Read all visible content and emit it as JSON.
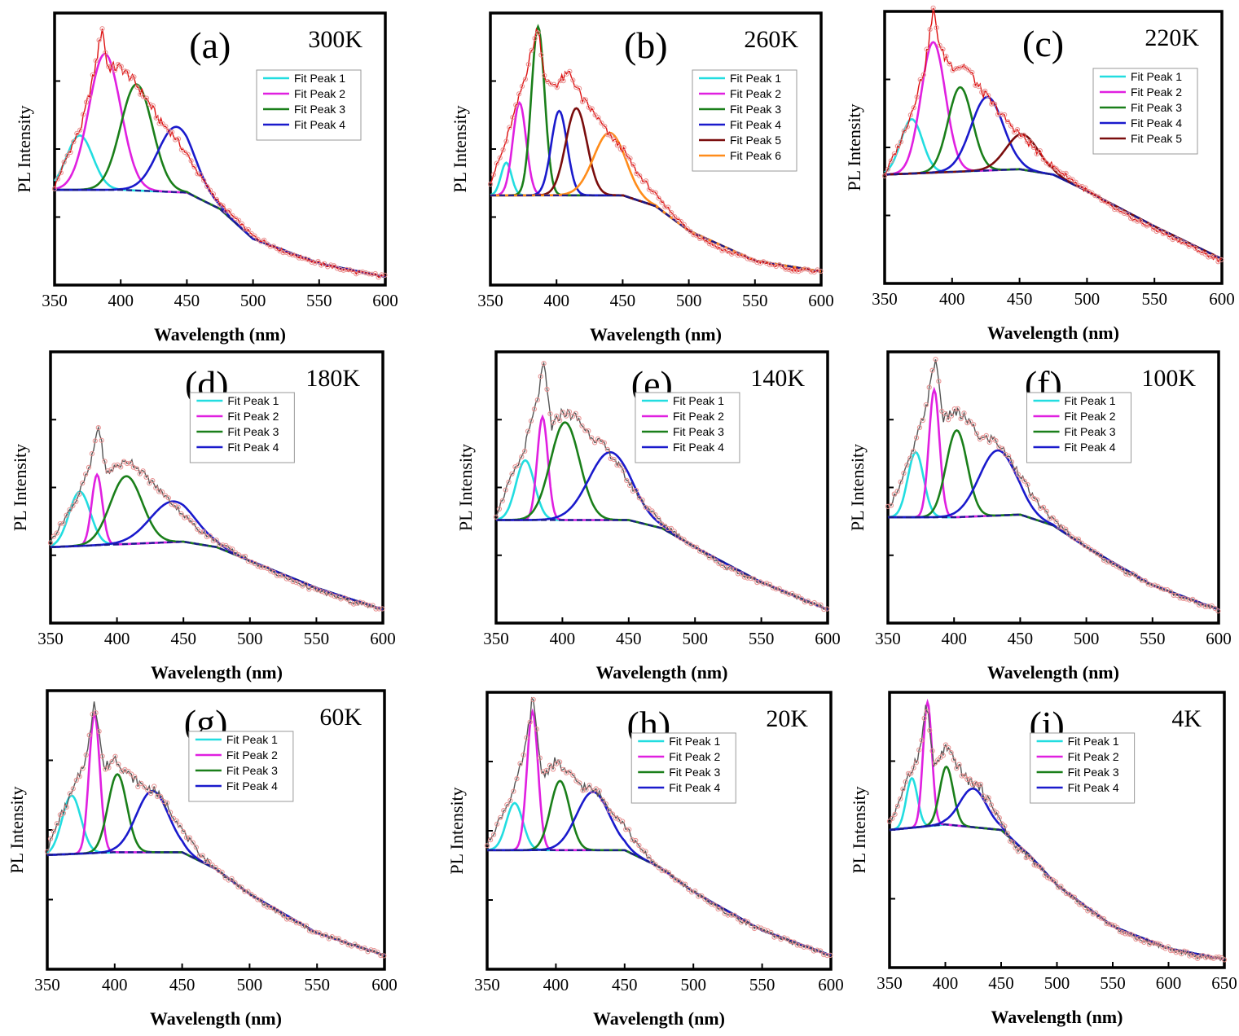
{
  "chart_data": [
    {
      "type": "line",
      "panel": "(a)",
      "temperature": "300K",
      "xlabel": "Wavelength (nm)",
      "ylabel": "PL Intensity",
      "xlim": [
        350,
        600
      ],
      "xticks": [
        350,
        400,
        450,
        500,
        550,
        600
      ],
      "ylim": [
        0,
        1
      ],
      "baseline": {
        "wavelength": [
          350,
          400,
          450,
          475,
          500,
          550,
          600
        ],
        "intensity": [
          0.35,
          0.35,
          0.34,
          0.28,
          0.17,
          0.08,
          0.03
        ]
      },
      "measured": {
        "wavelength": [
          350,
          360,
          370,
          380,
          386,
          390,
          400,
          410,
          420,
          430,
          440,
          450,
          460,
          475,
          500,
          525,
          550,
          575,
          600
        ],
        "intensity": [
          0.36,
          0.48,
          0.58,
          0.78,
          0.95,
          0.8,
          0.8,
          0.75,
          0.68,
          0.6,
          0.55,
          0.48,
          0.4,
          0.3,
          0.18,
          0.12,
          0.08,
          0.05,
          0.03
        ]
      },
      "peaks": [
        {
          "name": "Fit Peak 1",
          "color": "#22dde0",
          "center": 369,
          "height": 0.2,
          "width": 10
        },
        {
          "name": "Fit Peak 2",
          "color": "#e020e0",
          "center": 388,
          "height": 0.5,
          "width": 12
        },
        {
          "name": "Fit Peak 3",
          "color": "#1a7f1a",
          "center": 412,
          "height": 0.39,
          "width": 12
        },
        {
          "name": "Fit Peak 4",
          "color": "#1a1acc",
          "center": 442,
          "height": 0.24,
          "width": 14
        }
      ]
    },
    {
      "type": "line",
      "panel": "(b)",
      "temperature": "260K",
      "xlabel": "Wavelength (nm)",
      "ylabel": "PL Intensity",
      "xlim": [
        350,
        600
      ],
      "xticks": [
        350,
        400,
        450,
        500,
        550,
        600
      ],
      "ylim": [
        0,
        1
      ],
      "baseline": {
        "wavelength": [
          350,
          400,
          450,
          475,
          500,
          550,
          600
        ],
        "intensity": [
          0.33,
          0.33,
          0.33,
          0.29,
          0.2,
          0.09,
          0.05
        ]
      },
      "measured": {
        "wavelength": [
          350,
          360,
          370,
          378,
          386,
          392,
          400,
          410,
          420,
          430,
          440,
          450,
          460,
          475,
          500,
          525,
          550,
          575,
          600
        ],
        "intensity": [
          0.38,
          0.5,
          0.66,
          0.8,
          0.95,
          0.74,
          0.74,
          0.78,
          0.68,
          0.62,
          0.55,
          0.5,
          0.42,
          0.33,
          0.2,
          0.13,
          0.09,
          0.06,
          0.05
        ]
      },
      "peaks": [
        {
          "name": "Fit Peak 1",
          "color": "#22dde0",
          "center": 362,
          "height": 0.12,
          "width": 4
        },
        {
          "name": "Fit Peak 2",
          "color": "#e020e0",
          "center": 372,
          "height": 0.34,
          "width": 5
        },
        {
          "name": "Fit Peak 3",
          "color": "#1a7f1a",
          "center": 386,
          "height": 0.62,
          "width": 5
        },
        {
          "name": "Fit Peak 4",
          "color": "#1a1acc",
          "center": 402,
          "height": 0.31,
          "width": 6
        },
        {
          "name": "Fit Peak 5",
          "color": "#7a0d0d",
          "center": 415,
          "height": 0.32,
          "width": 8
        },
        {
          "name": "Fit Peak 6",
          "color": "#ff8c1a",
          "center": 440,
          "height": 0.23,
          "width": 12
        }
      ]
    },
    {
      "type": "line",
      "panel": "(c)",
      "temperature": "220K",
      "xlabel": "Wavelength (nm)",
      "ylabel": "PL Intensity",
      "xlim": [
        350,
        600
      ],
      "xticks": [
        350,
        400,
        450,
        500,
        550,
        600
      ],
      "ylim": [
        0,
        1
      ],
      "baseline": {
        "wavelength": [
          350,
          400,
          450,
          475,
          500,
          550,
          600
        ],
        "intensity": [
          0.4,
          0.41,
          0.42,
          0.4,
          0.34,
          0.21,
          0.09
        ]
      },
      "measured": {
        "wavelength": [
          350,
          360,
          370,
          380,
          386,
          392,
          400,
          410,
          420,
          430,
          440,
          450,
          460,
          475,
          500,
          525,
          550,
          575,
          600
        ],
        "intensity": [
          0.4,
          0.5,
          0.63,
          0.8,
          1.0,
          0.85,
          0.8,
          0.8,
          0.72,
          0.66,
          0.6,
          0.55,
          0.5,
          0.43,
          0.34,
          0.26,
          0.2,
          0.14,
          0.08
        ]
      },
      "peaks": [
        {
          "name": "Fit Peak 1",
          "color": "#22dde0",
          "center": 370,
          "height": 0.2,
          "width": 8
        },
        {
          "name": "Fit Peak 2",
          "color": "#e020e0",
          "center": 386,
          "height": 0.48,
          "width": 9
        },
        {
          "name": "Fit Peak 3",
          "color": "#1a7f1a",
          "center": 406,
          "height": 0.31,
          "width": 9
        },
        {
          "name": "Fit Peak 4",
          "color": "#1a1acc",
          "center": 426,
          "height": 0.27,
          "width": 12
        },
        {
          "name": "Fit Peak 5",
          "color": "#7a0d0d",
          "center": 452,
          "height": 0.13,
          "width": 12
        }
      ]
    },
    {
      "type": "line",
      "panel": "(d)",
      "temperature": "180K",
      "xlabel": "Wavelength (nm)",
      "ylabel": "PL Intensity",
      "xlim": [
        350,
        600
      ],
      "xticks": [
        350,
        400,
        450,
        500,
        550,
        600
      ],
      "ylim": [
        0,
        1
      ],
      "baseline": {
        "wavelength": [
          350,
          400,
          450,
          475,
          500,
          550,
          600
        ],
        "intensity": [
          0.28,
          0.29,
          0.3,
          0.28,
          0.23,
          0.13,
          0.05
        ]
      },
      "measured": {
        "wavelength": [
          350,
          360,
          370,
          380,
          386,
          392,
          400,
          410,
          420,
          430,
          440,
          450,
          460,
          475,
          500,
          525,
          550,
          575,
          600
        ],
        "intensity": [
          0.3,
          0.38,
          0.46,
          0.58,
          0.73,
          0.55,
          0.58,
          0.6,
          0.55,
          0.5,
          0.45,
          0.4,
          0.35,
          0.3,
          0.23,
          0.17,
          0.12,
          0.08,
          0.05
        ]
      },
      "peaks": [
        {
          "name": "Fit Peak 1",
          "color": "#22dde0",
          "center": 372,
          "height": 0.2,
          "width": 8
        },
        {
          "name": "Fit Peak 2",
          "color": "#e020e0",
          "center": 385,
          "height": 0.26,
          "width": 4
        },
        {
          "name": "Fit Peak 3",
          "color": "#1a7f1a",
          "center": 407,
          "height": 0.25,
          "width": 12
        },
        {
          "name": "Fit Peak 4",
          "color": "#1a1acc",
          "center": 442,
          "height": 0.15,
          "width": 17
        }
      ]
    },
    {
      "type": "line",
      "panel": "(e)",
      "temperature": "140K",
      "xlabel": "Wavelength (nm)",
      "ylabel": "PL Intensity",
      "xlim": [
        350,
        600
      ],
      "xticks": [
        350,
        400,
        450,
        500,
        550,
        600
      ],
      "ylim": [
        0,
        1
      ],
      "baseline": {
        "wavelength": [
          350,
          400,
          450,
          475,
          500,
          550,
          600
        ],
        "intensity": [
          0.38,
          0.38,
          0.38,
          0.35,
          0.28,
          0.15,
          0.05
        ]
      },
      "measured": {
        "wavelength": [
          350,
          360,
          370,
          380,
          386,
          392,
          400,
          410,
          420,
          430,
          440,
          450,
          460,
          475,
          500,
          525,
          550,
          575,
          600
        ],
        "intensity": [
          0.4,
          0.52,
          0.62,
          0.8,
          0.95,
          0.72,
          0.78,
          0.76,
          0.7,
          0.66,
          0.6,
          0.52,
          0.45,
          0.37,
          0.28,
          0.2,
          0.15,
          0.1,
          0.05
        ]
      },
      "peaks": [
        {
          "name": "Fit Peak 1",
          "color": "#22dde0",
          "center": 372,
          "height": 0.22,
          "width": 7
        },
        {
          "name": "Fit Peak 2",
          "color": "#e020e0",
          "center": 385,
          "height": 0.38,
          "width": 4
        },
        {
          "name": "Fit Peak 3",
          "color": "#1a7f1a",
          "center": 402,
          "height": 0.36,
          "width": 11
        },
        {
          "name": "Fit Peak 4",
          "color": "#1a1acc",
          "center": 436,
          "height": 0.25,
          "width": 16
        }
      ]
    },
    {
      "type": "line",
      "panel": "(f)",
      "temperature": "100K",
      "xlabel": "Wavelength (nm)",
      "ylabel": "PL Intensity",
      "xlim": [
        350,
        600
      ],
      "xticks": [
        350,
        400,
        450,
        500,
        550,
        600
      ],
      "ylim": [
        0,
        1
      ],
      "baseline": {
        "wavelength": [
          350,
          400,
          450,
          475,
          500,
          550,
          600
        ],
        "intensity": [
          0.39,
          0.39,
          0.4,
          0.36,
          0.28,
          0.14,
          0.05
        ]
      },
      "measured": {
        "wavelength": [
          350,
          360,
          370,
          380,
          386,
          392,
          400,
          410,
          420,
          430,
          440,
          450,
          460,
          475,
          500,
          525,
          550,
          575,
          600
        ],
        "intensity": [
          0.42,
          0.52,
          0.65,
          0.82,
          0.98,
          0.75,
          0.78,
          0.75,
          0.68,
          0.68,
          0.62,
          0.55,
          0.46,
          0.38,
          0.28,
          0.2,
          0.14,
          0.09,
          0.05
        ]
      },
      "peaks": [
        {
          "name": "Fit Peak 1",
          "color": "#22dde0",
          "center": 371,
          "height": 0.24,
          "width": 6
        },
        {
          "name": "Fit Peak 2",
          "color": "#e020e0",
          "center": 385,
          "height": 0.47,
          "width": 4
        },
        {
          "name": "Fit Peak 3",
          "color": "#1a7f1a",
          "center": 402,
          "height": 0.32,
          "width": 8
        },
        {
          "name": "Fit Peak 4",
          "color": "#1a1acc",
          "center": 433,
          "height": 0.24,
          "width": 14
        }
      ]
    },
    {
      "type": "line",
      "panel": "(g)",
      "temperature": "60K",
      "xlabel": "Wavelength (nm)",
      "ylabel": "PL Intensity",
      "xlim": [
        350,
        600
      ],
      "xticks": [
        350,
        400,
        450,
        500,
        550,
        600
      ],
      "ylim": [
        0,
        1
      ],
      "baseline": {
        "wavelength": [
          350,
          400,
          450,
          475,
          500,
          550,
          600
        ],
        "intensity": [
          0.41,
          0.42,
          0.42,
          0.36,
          0.27,
          0.13,
          0.05
        ]
      },
      "measured": {
        "wavelength": [
          350,
          360,
          370,
          380,
          385,
          392,
          400,
          410,
          420,
          430,
          440,
          450,
          460,
          475,
          500,
          525,
          550,
          575,
          600
        ],
        "intensity": [
          0.43,
          0.55,
          0.65,
          0.78,
          0.98,
          0.72,
          0.76,
          0.7,
          0.66,
          0.64,
          0.58,
          0.5,
          0.43,
          0.36,
          0.27,
          0.19,
          0.13,
          0.09,
          0.05
        ]
      },
      "peaks": [
        {
          "name": "Fit Peak 1",
          "color": "#22dde0",
          "center": 368,
          "height": 0.21,
          "width": 7
        },
        {
          "name": "Fit Peak 2",
          "color": "#e020e0",
          "center": 385,
          "height": 0.5,
          "width": 4
        },
        {
          "name": "Fit Peak 3",
          "color": "#1a7f1a",
          "center": 402,
          "height": 0.28,
          "width": 7
        },
        {
          "name": "Fit Peak 4",
          "color": "#1a1acc",
          "center": 428,
          "height": 0.22,
          "width": 12
        }
      ]
    },
    {
      "type": "line",
      "panel": "(h)",
      "temperature": "20K",
      "xlabel": "Wavelength (nm)",
      "ylabel": "PL Intensity",
      "xlim": [
        350,
        600
      ],
      "xticks": [
        350,
        400,
        450,
        500,
        550,
        600
      ],
      "ylim": [
        0,
        1
      ],
      "baseline": {
        "wavelength": [
          350,
          400,
          450,
          475,
          500,
          550,
          600
        ],
        "intensity": [
          0.43,
          0.43,
          0.43,
          0.37,
          0.28,
          0.14,
          0.05
        ]
      },
      "measured": {
        "wavelength": [
          350,
          360,
          370,
          378,
          383,
          390,
          400,
          410,
          420,
          430,
          440,
          450,
          460,
          475,
          500,
          525,
          550,
          575,
          600
        ],
        "intensity": [
          0.45,
          0.55,
          0.65,
          0.8,
          0.98,
          0.7,
          0.75,
          0.7,
          0.66,
          0.64,
          0.58,
          0.52,
          0.44,
          0.37,
          0.28,
          0.2,
          0.14,
          0.09,
          0.05
        ]
      },
      "peaks": [
        {
          "name": "Fit Peak 1",
          "color": "#22dde0",
          "center": 370,
          "height": 0.17,
          "width": 6
        },
        {
          "name": "Fit Peak 2",
          "color": "#e020e0",
          "center": 383,
          "height": 0.5,
          "width": 4
        },
        {
          "name": "Fit Peak 3",
          "color": "#1a7f1a",
          "center": 403,
          "height": 0.25,
          "width": 7
        },
        {
          "name": "Fit Peak 4",
          "color": "#1a1acc",
          "center": 427,
          "height": 0.21,
          "width": 12
        }
      ]
    },
    {
      "type": "line",
      "panel": "(i)",
      "temperature": "4K",
      "xlabel": "Wavelength (nm)",
      "ylabel": "PL Intensity",
      "xlim": [
        350,
        650
      ],
      "xticks": [
        350,
        400,
        450,
        500,
        550,
        600,
        650
      ],
      "ylim": [
        0,
        1
      ],
      "baseline": {
        "wavelength": [
          350,
          400,
          450,
          475,
          500,
          550,
          600,
          650
        ],
        "intensity": [
          0.5,
          0.52,
          0.5,
          0.41,
          0.3,
          0.15,
          0.07,
          0.03
        ]
      },
      "measured": {
        "wavelength": [
          350,
          360,
          370,
          378,
          383,
          390,
          400,
          410,
          420,
          430,
          440,
          450,
          460,
          475,
          500,
          525,
          550,
          575,
          600,
          625,
          650
        ],
        "intensity": [
          0.52,
          0.62,
          0.72,
          0.8,
          0.97,
          0.72,
          0.8,
          0.74,
          0.68,
          0.66,
          0.6,
          0.53,
          0.45,
          0.4,
          0.3,
          0.22,
          0.15,
          0.1,
          0.07,
          0.04,
          0.03
        ]
      },
      "peaks": [
        {
          "name": "Fit Peak 1",
          "color": "#22dde0",
          "center": 370,
          "height": 0.18,
          "width": 5
        },
        {
          "name": "Fit Peak 2",
          "color": "#e020e0",
          "center": 384,
          "height": 0.45,
          "width": 4
        },
        {
          "name": "Fit Peak 3",
          "color": "#1a7f1a",
          "center": 401,
          "height": 0.21,
          "width": 6
        },
        {
          "name": "Fit Peak 4",
          "color": "#1a1acc",
          "center": 425,
          "height": 0.14,
          "width": 12
        }
      ]
    }
  ]
}
